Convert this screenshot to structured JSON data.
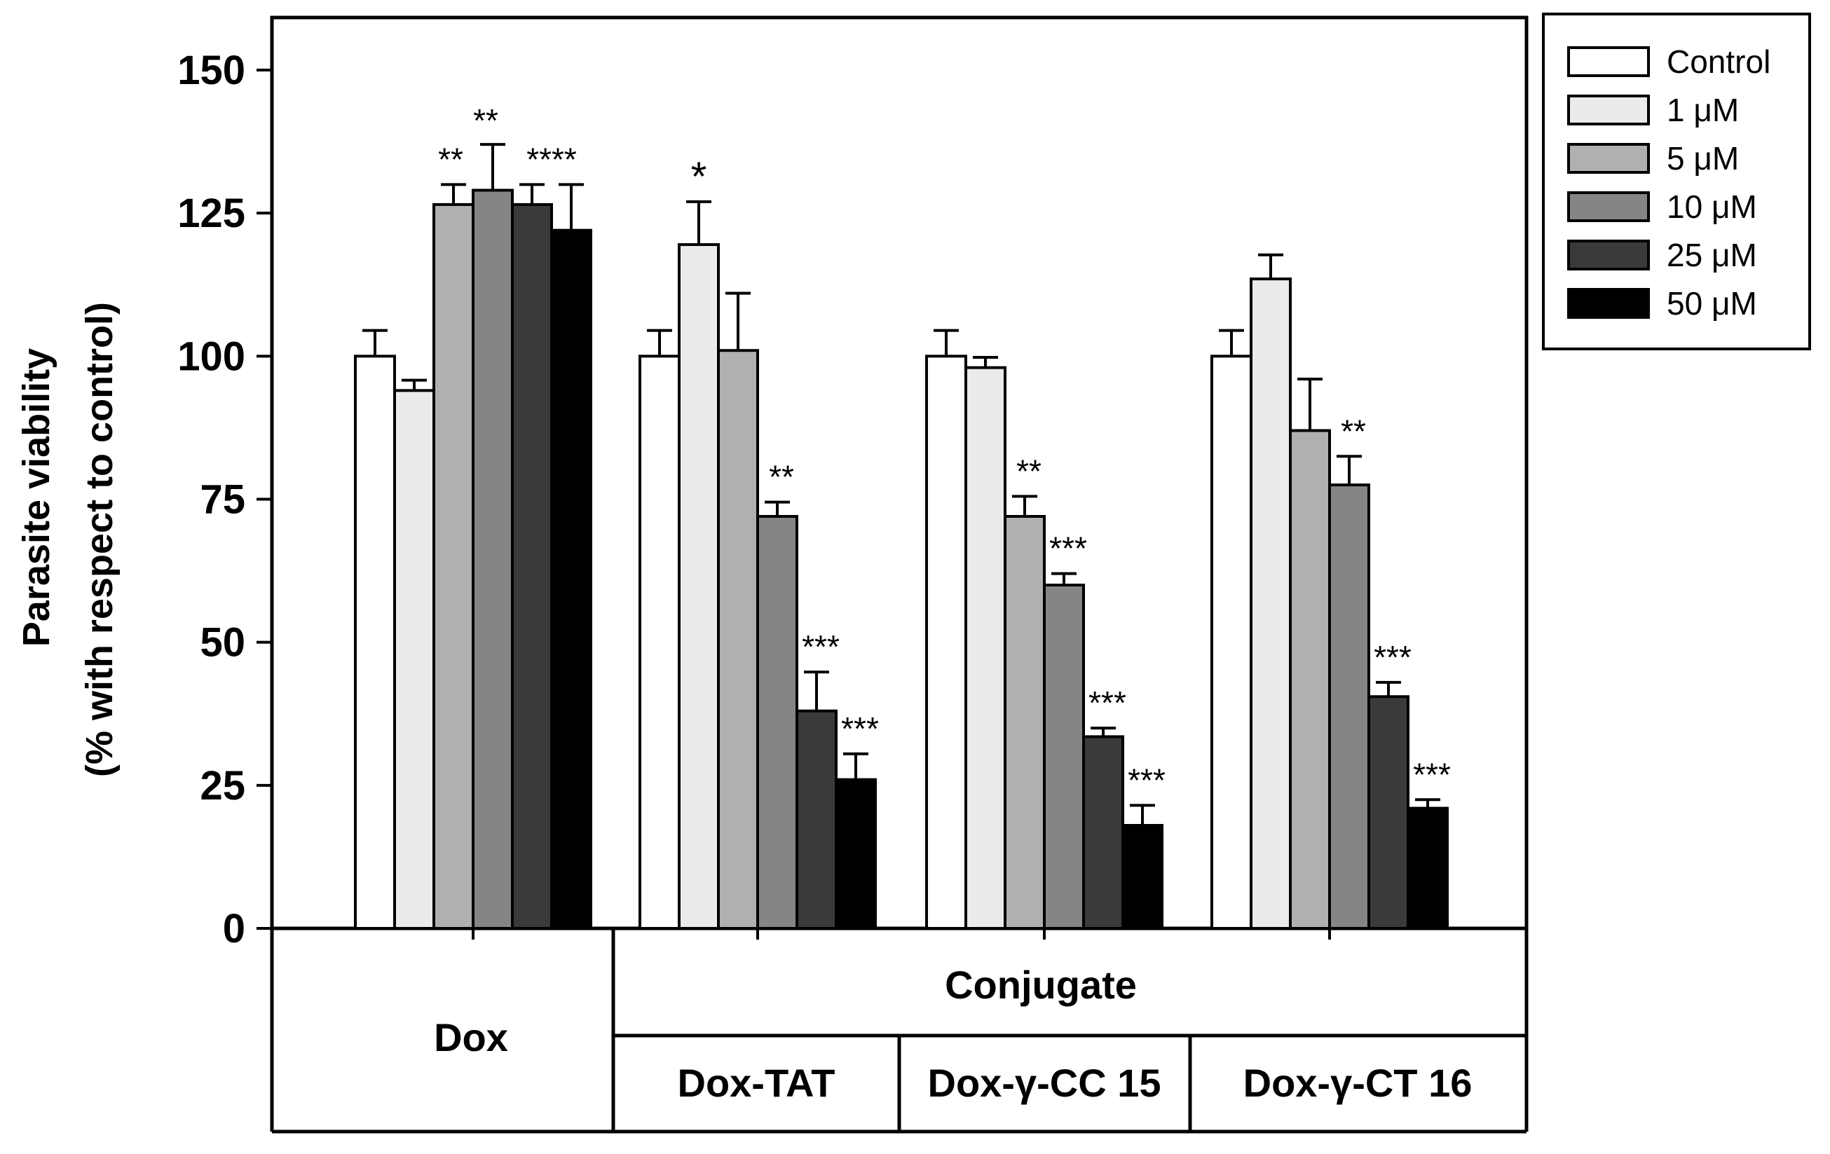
{
  "chart_data": {
    "type": "bar",
    "ylabel": [
      "Parasite viability",
      "(% with respect to control)"
    ],
    "ylim": [
      0,
      150
    ],
    "yticks": [
      "0",
      "25",
      "50",
      "75",
      "100",
      "125",
      "150"
    ],
    "grid": false,
    "legend_position": "top-right",
    "categories": [
      "Dox",
      "Dox-TAT",
      "Dox-γ-CC 15",
      "Dox-γ-CT 16"
    ],
    "category_group_label": "Conjugate",
    "series": [
      {
        "name": "Control",
        "color": "#ffffff",
        "values": [
          100,
          100,
          100,
          100
        ],
        "errors": [
          4.5,
          4.5,
          4.5,
          4.5
        ]
      },
      {
        "name": "1 μM",
        "color": "#ebebeb",
        "values": [
          94,
          119.5,
          98,
          113.5
        ],
        "errors": [
          1.8,
          7.5,
          1.8,
          4.2
        ]
      },
      {
        "name": "5 μM",
        "color": "#b0b0b0",
        "values": [
          126.5,
          101,
          72,
          87
        ],
        "errors": [
          3.5,
          10,
          3.5,
          9
        ]
      },
      {
        "name": "10 μM",
        "color": "#858585",
        "values": [
          129,
          72,
          60,
          77.5
        ],
        "errors": [
          8,
          2.5,
          2,
          5
        ]
      },
      {
        "name": "25 μM",
        "color": "#3a3a3a",
        "values": [
          126.5,
          38,
          33.5,
          40.5
        ],
        "errors": [
          3.5,
          6.8,
          1.5,
          2.5
        ]
      },
      {
        "name": "50 μM",
        "color": "#000000",
        "values": [
          122,
          26,
          18,
          21
        ],
        "errors": [
          8,
          4.5,
          3.5,
          1.5
        ]
      }
    ],
    "annotations": [
      [
        "",
        "",
        "",
        "",
        "",
        ""
      ],
      [
        "",
        "*",
        "",
        "**",
        "***",
        "***"
      ],
      [
        "",
        "",
        "**",
        "***",
        "***",
        "***"
      ],
      [
        "",
        "",
        "",
        "**",
        "***",
        "***"
      ]
    ],
    "dox_annotations": {
      "5 μM": "**",
      "10 μM": "**",
      "25 and 50 μM": "****"
    }
  }
}
